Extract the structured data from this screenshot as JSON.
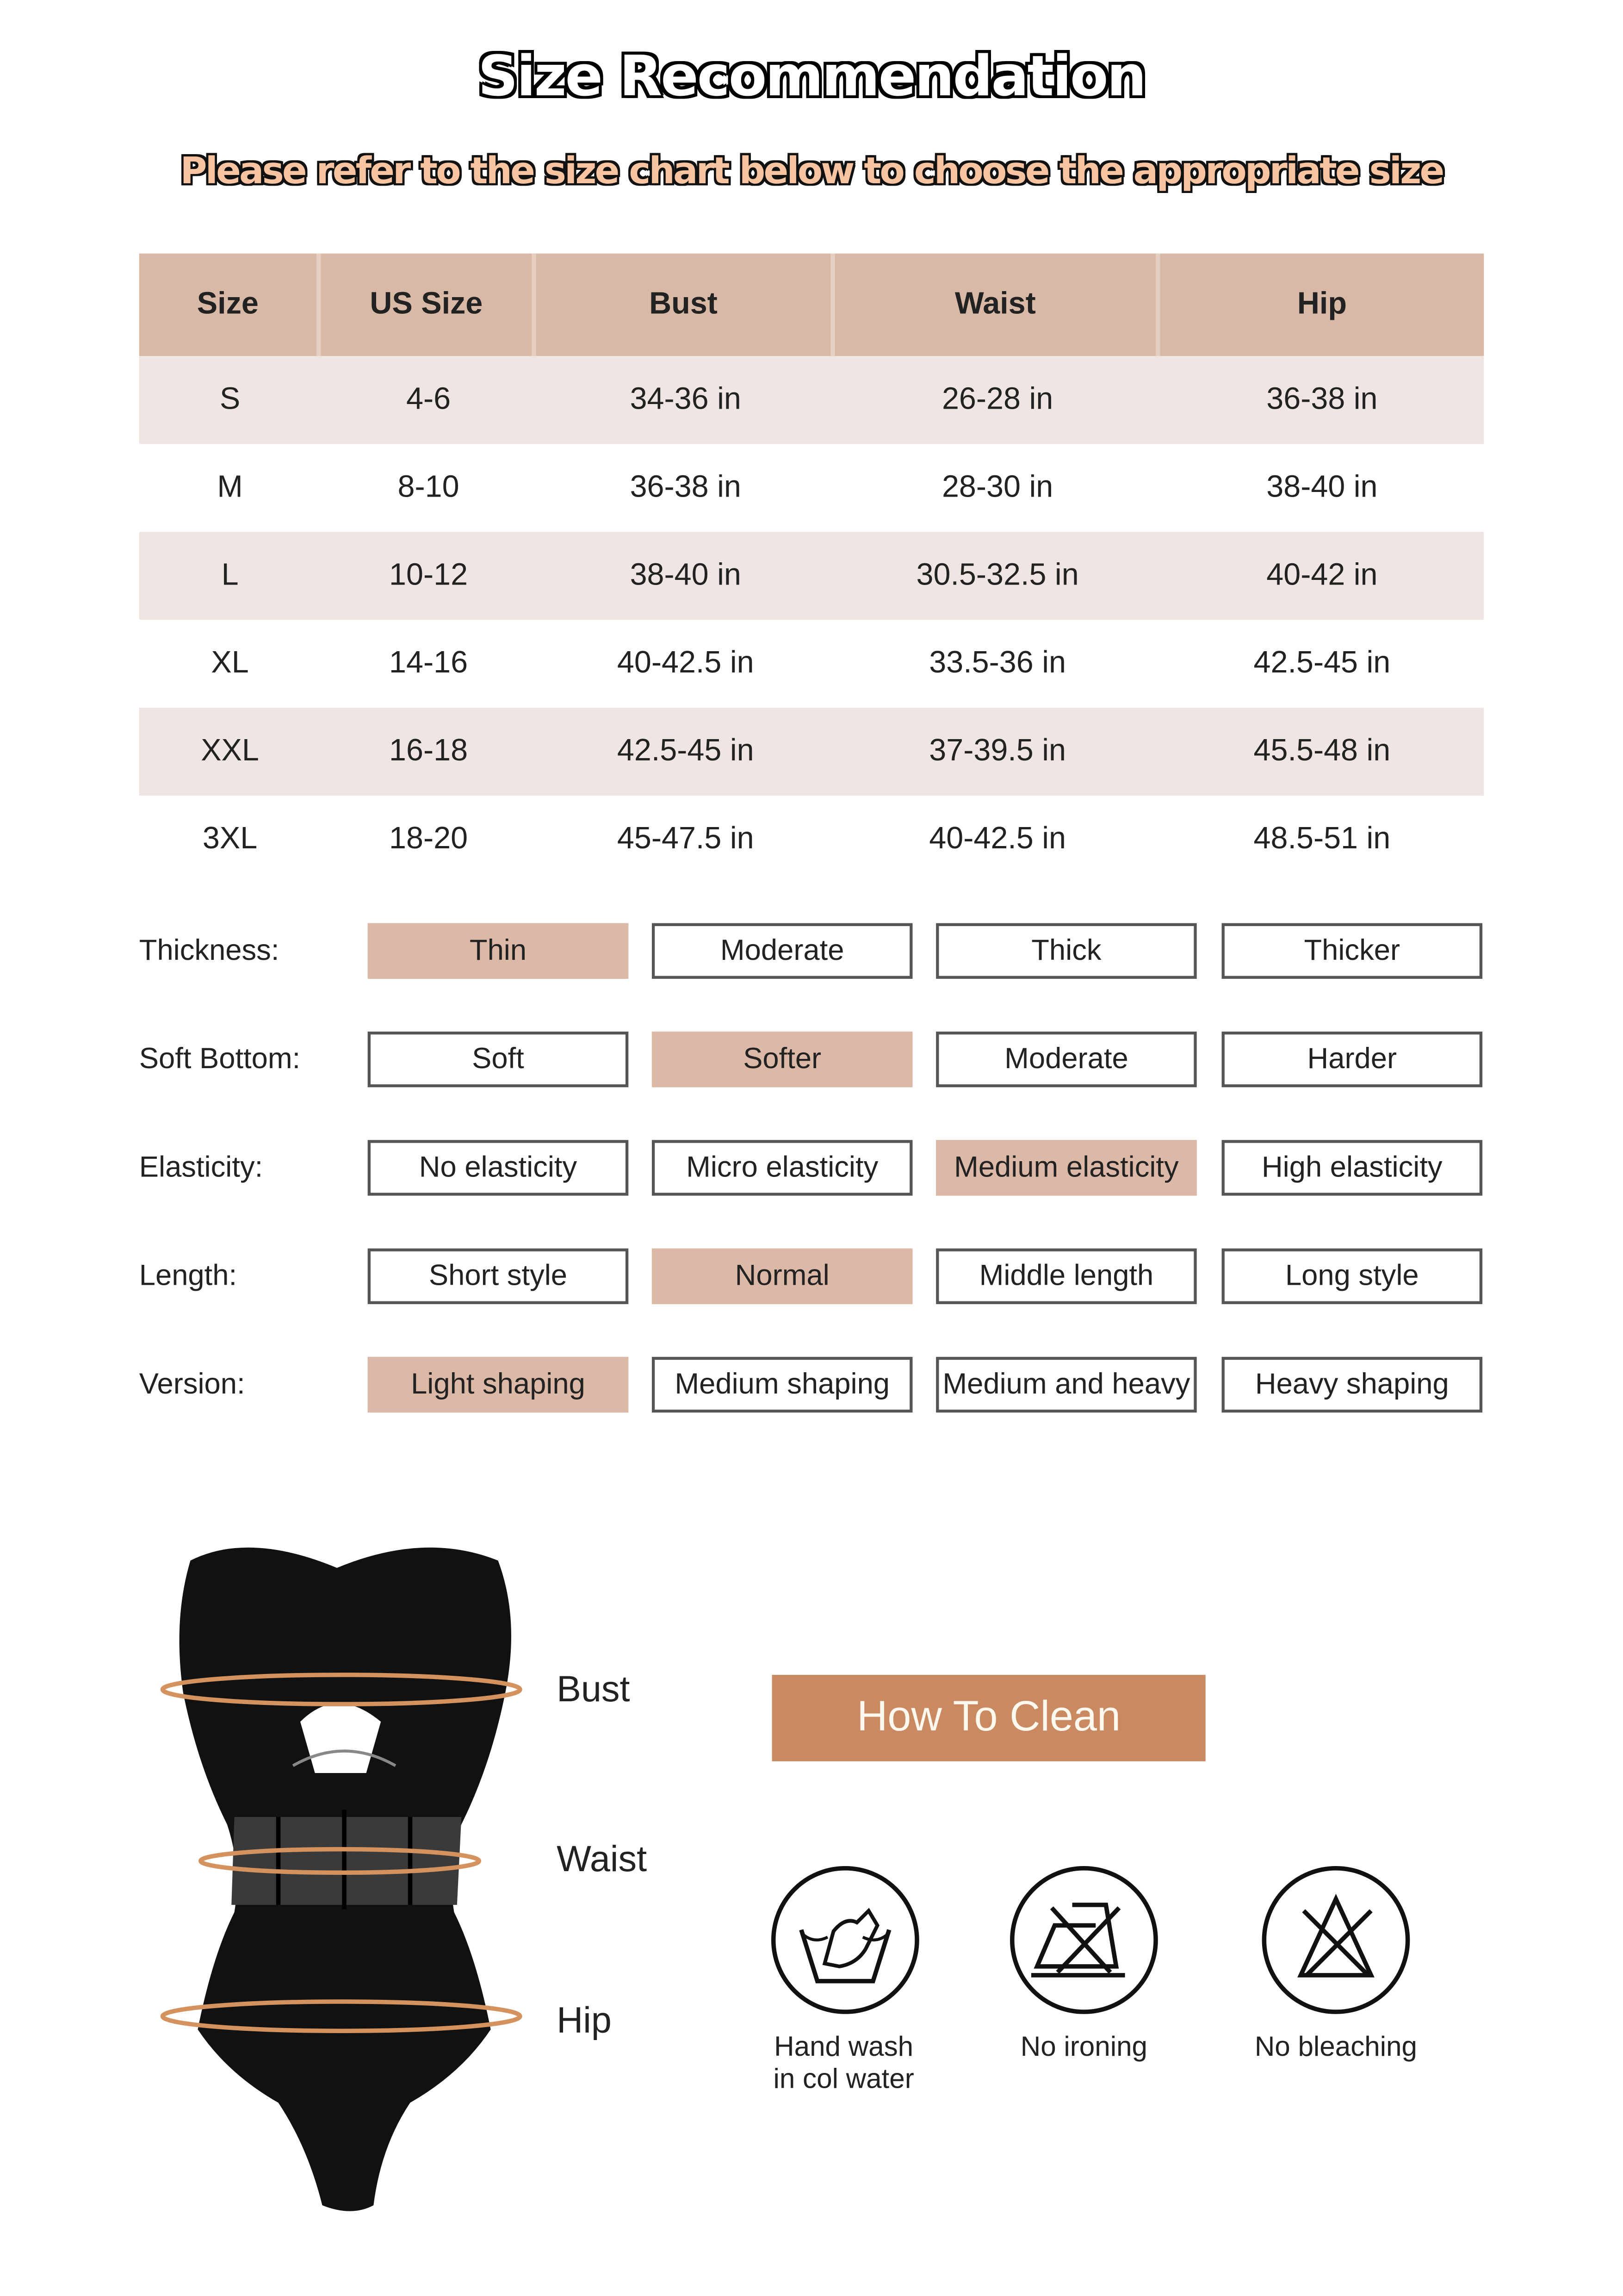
{
  "title": "Size Recommendation",
  "subtitle": "Please refer to the size chart below to choose the appropriate size",
  "colors": {
    "header_bg": "#d8b9a6",
    "row_shade": "#efe6e3",
    "selected": "#dcb8a6",
    "clean_banner": "#c98a62",
    "subtitle_fill": "#f6c4a0",
    "measure_ring": "#d4935e"
  },
  "size_table": {
    "headers": [
      "Size",
      "US Size",
      "Bust",
      "Waist",
      "Hip"
    ],
    "rows": [
      [
        "S",
        "4-6",
        "34-36 in",
        "26-28 in",
        "36-38 in"
      ],
      [
        "M",
        "8-10",
        "36-38 in",
        "28-30 in",
        "38-40 in"
      ],
      [
        "L",
        "10-12",
        "38-40 in",
        "30.5-32.5 in",
        "40-42 in"
      ],
      [
        "XL",
        "14-16",
        "40-42.5 in",
        "33.5-36 in",
        "42.5-45 in"
      ],
      [
        "XXL",
        "16-18",
        "42.5-45 in",
        "37-39.5 in",
        "45.5-48 in"
      ],
      [
        "3XL",
        "18-20",
        "45-47.5 in",
        "40-42.5 in",
        "48.5-51 in"
      ]
    ]
  },
  "attributes": [
    {
      "label": "Thickness:",
      "options": [
        "Thin",
        "Moderate",
        "Thick",
        "Thicker"
      ],
      "selected": 0
    },
    {
      "label": "Soft Bottom:",
      "options": [
        "Soft",
        "Softer",
        "Moderate",
        "Harder"
      ],
      "selected": 1
    },
    {
      "label": "Elasticity:",
      "options": [
        "No elasticity",
        "Micro elasticity",
        "Medium elasticity",
        "High elasticity"
      ],
      "selected": 2
    },
    {
      "label": "Length:",
      "options": [
        "Short style",
        "Normal",
        "Middle length",
        "Long style"
      ],
      "selected": 1
    },
    {
      "label": "Version:",
      "options": [
        "Light shaping",
        "Medium shaping",
        "Medium and heavy",
        "Heavy shaping"
      ],
      "selected": 0
    }
  ],
  "measurements": {
    "bust": "Bust",
    "waist": "Waist",
    "hip": "Hip"
  },
  "clean": {
    "title": "How To Clean",
    "items": [
      {
        "icon": "hand-wash-icon",
        "line1": "Hand wash",
        "line2": "in col water"
      },
      {
        "icon": "no-ironing-icon",
        "line1": "No ironing",
        "line2": ""
      },
      {
        "icon": "no-bleaching-icon",
        "line1": "No bleaching",
        "line2": ""
      }
    ]
  }
}
